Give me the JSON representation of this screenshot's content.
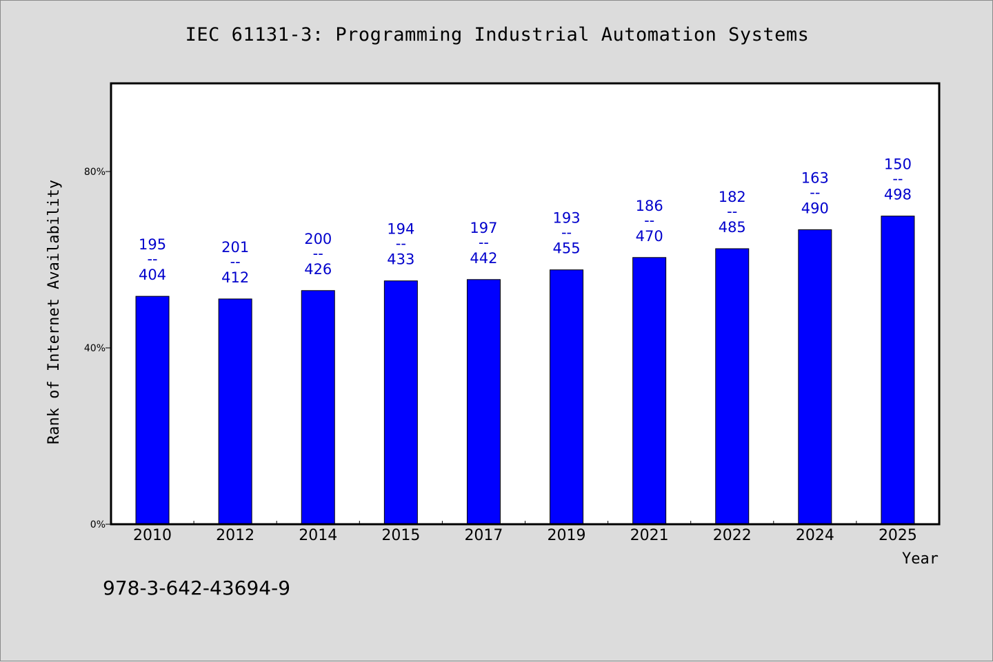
{
  "chart_data": {
    "type": "bar",
    "title": "IEC 61131-3: Programming Industrial Automation Systems",
    "xlabel": "Year",
    "ylabel": "Rank of Internet Availability",
    "ylim": [
      0,
      100
    ],
    "yticks": [
      {
        "value": 0,
        "label": "0%"
      },
      {
        "value": 40,
        "label": "40%"
      },
      {
        "value": 80,
        "label": "80%"
      }
    ],
    "categories": [
      "2010",
      "2012",
      "2014",
      "2015",
      "2017",
      "2019",
      "2021",
      "2022",
      "2024",
      "2025"
    ],
    "values": [
      51.7,
      51.1,
      53.0,
      55.2,
      55.5,
      57.7,
      60.5,
      62.5,
      66.8,
      69.9
    ],
    "rank": [
      195,
      201,
      200,
      194,
      197,
      193,
      186,
      182,
      163,
      150
    ],
    "total": [
      404,
      412,
      426,
      433,
      442,
      455,
      470,
      485,
      490,
      498
    ],
    "label_separator": "--",
    "bar_color": "#0000ff",
    "label_color": "#0000cc",
    "grid": false
  },
  "footer": "978-3-642-43694-9"
}
